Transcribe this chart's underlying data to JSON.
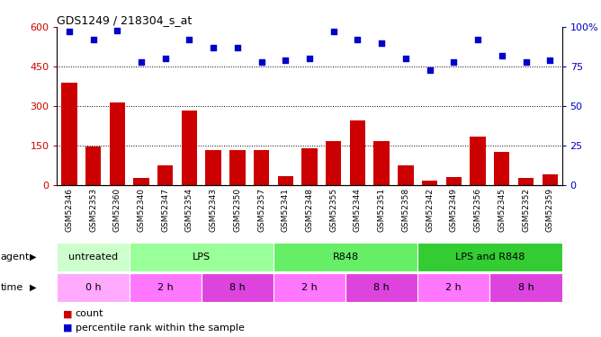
{
  "title": "GDS1249 / 218304_s_at",
  "samples": [
    "GSM52346",
    "GSM52353",
    "GSM52360",
    "GSM52340",
    "GSM52347",
    "GSM52354",
    "GSM52343",
    "GSM52350",
    "GSM52357",
    "GSM52341",
    "GSM52348",
    "GSM52355",
    "GSM52344",
    "GSM52351",
    "GSM52358",
    "GSM52342",
    "GSM52349",
    "GSM52356",
    "GSM52345",
    "GSM52352",
    "GSM52359"
  ],
  "counts": [
    390,
    148,
    315,
    28,
    75,
    285,
    135,
    133,
    133,
    35,
    140,
    168,
    245,
    168,
    75,
    18,
    30,
    185,
    128,
    28,
    40
  ],
  "percentile": [
    97,
    92,
    98,
    78,
    80,
    92,
    87,
    87,
    78,
    79,
    80,
    97,
    92,
    90,
    80,
    73,
    78,
    92,
    82,
    78,
    79
  ],
  "bar_color": "#cc0000",
  "dot_color": "#0000cc",
  "ylim_left": [
    0,
    600
  ],
  "ylim_right": [
    0,
    100
  ],
  "yticks_left": [
    0,
    150,
    300,
    450,
    600
  ],
  "yticks_right": [
    0,
    25,
    50,
    75,
    100
  ],
  "ytick_labels_right": [
    "0",
    "25",
    "50",
    "75",
    "100%"
  ],
  "grid_lines": [
    150,
    300,
    450
  ],
  "agent_groups": [
    {
      "label": "untreated",
      "start": 0,
      "end": 3,
      "color": "#ccffcc"
    },
    {
      "label": "LPS",
      "start": 3,
      "end": 9,
      "color": "#99ff99"
    },
    {
      "label": "R848",
      "start": 9,
      "end": 15,
      "color": "#66ee66"
    },
    {
      "label": "LPS and R848",
      "start": 15,
      "end": 21,
      "color": "#33cc33"
    }
  ],
  "time_groups": [
    {
      "label": "0 h",
      "start": 0,
      "end": 3,
      "color": "#ffaaff"
    },
    {
      "label": "2 h",
      "start": 3,
      "end": 6,
      "color": "#ff77ff"
    },
    {
      "label": "8 h",
      "start": 6,
      "end": 9,
      "color": "#dd44dd"
    },
    {
      "label": "2 h",
      "start": 9,
      "end": 12,
      "color": "#ff77ff"
    },
    {
      "label": "8 h",
      "start": 12,
      "end": 15,
      "color": "#dd44dd"
    },
    {
      "label": "2 h",
      "start": 15,
      "end": 18,
      "color": "#ff77ff"
    },
    {
      "label": "8 h",
      "start": 18,
      "end": 21,
      "color": "#dd44dd"
    }
  ],
  "legend_count_color": "#cc0000",
  "legend_pct_color": "#0000cc",
  "background_color": "#ffffff"
}
